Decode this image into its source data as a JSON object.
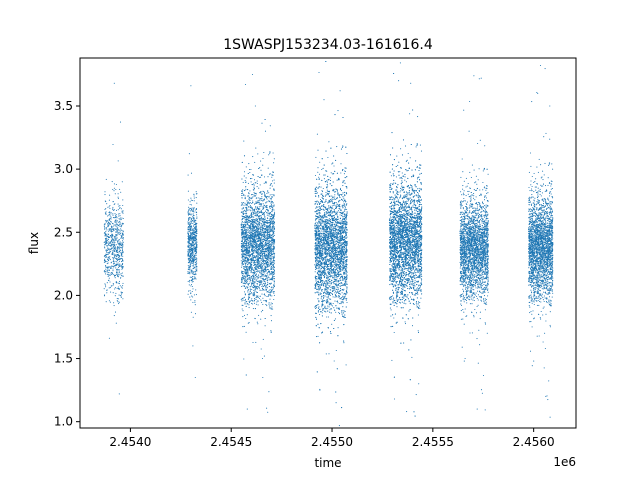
{
  "chart_data": {
    "type": "scatter",
    "title": "1SWASPJ153234.03-161616.4",
    "xlabel": "time",
    "ylabel": "flux",
    "x_offset_label": "1e6",
    "xlim": [
      2453750,
      2456210
    ],
    "ylim": [
      0.95,
      3.88
    ],
    "x_ticks": [
      2454000,
      2454500,
      2455000,
      2455500,
      2456000
    ],
    "x_tick_labels": [
      "2.4540",
      "2.4545",
      "2.4550",
      "2.4555",
      "2.4560"
    ],
    "y_ticks": [
      1.0,
      1.5,
      2.0,
      2.5,
      3.0,
      3.5
    ],
    "y_tick_labels": [
      "1.0",
      "1.5",
      "2.0",
      "2.5",
      "3.0",
      "3.5"
    ],
    "grid": false,
    "marker_color": "#1f77b4",
    "series": [
      {
        "points": [
          [
            2453870,
            2.42
          ],
          [
            2453890,
            2.15
          ],
          [
            2453900,
            2.61
          ],
          [
            2453910,
            2.33
          ],
          [
            2453920,
            3.68
          ],
          [
            2453930,
            2.48
          ],
          [
            2453945,
            1.22
          ],
          [
            2453955,
            2.55
          ],
          [
            2453960,
            2.9
          ],
          [
            2453880,
            1.95
          ],
          [
            2454290,
            2.45
          ],
          [
            2454300,
            3.66
          ],
          [
            2454305,
            2.2
          ],
          [
            2454310,
            1.6
          ],
          [
            2454315,
            2.8
          ],
          [
            2454325,
            2.38
          ],
          [
            2454330,
            2.62
          ],
          [
            2454322,
            1.35
          ],
          [
            2454560,
            2.35
          ],
          [
            2454580,
            1.1
          ],
          [
            2454600,
            2.7
          ],
          [
            2454620,
            3.5
          ],
          [
            2454640,
            2.25
          ],
          [
            2454655,
            1.5
          ],
          [
            2454670,
            3.3
          ],
          [
            2454690,
            2.5
          ],
          [
            2454700,
            1.8
          ],
          [
            2454710,
            3.05
          ],
          [
            2454920,
            2.4
          ],
          [
            2454940,
            1.25
          ],
          [
            2454960,
            3.55
          ],
          [
            2454980,
            2.1
          ],
          [
            2455000,
            2.65
          ],
          [
            2455020,
            1.15
          ],
          [
            2455040,
            3.62
          ],
          [
            2455060,
            2.3
          ],
          [
            2455070,
            1.45
          ],
          [
            2455290,
            2.5
          ],
          [
            2455310,
            1.18
          ],
          [
            2455330,
            3.7
          ],
          [
            2455350,
            2.2
          ],
          [
            2455370,
            1.08
          ],
          [
            2455390,
            3.68
          ],
          [
            2455410,
            2.75
          ],
          [
            2455430,
            1.3
          ],
          [
            2455440,
            2.4
          ],
          [
            2455640,
            2.35
          ],
          [
            2455660,
            1.5
          ],
          [
            2455680,
            3.3
          ],
          [
            2455700,
            2.6
          ],
          [
            2455720,
            1.1
          ],
          [
            2455740,
            3.72
          ],
          [
            2455760,
            2.2
          ],
          [
            2455770,
            1.7
          ],
          [
            2455980,
            2.45
          ],
          [
            2456000,
            1.48
          ],
          [
            2456020,
            3.6
          ],
          [
            2456040,
            2.3
          ],
          [
            2456060,
            1.2
          ],
          [
            2456080,
            3.5
          ],
          [
            2456090,
            2.1
          ]
        ]
      }
    ],
    "clusters": [
      {
        "x_start": 2453870,
        "x_end": 2453965,
        "mean": 2.38,
        "spread": 0.18,
        "count": 700
      },
      {
        "x_start": 2454285,
        "x_end": 2454330,
        "mean": 2.4,
        "spread": 0.17,
        "count": 650
      },
      {
        "x_start": 2454550,
        "x_end": 2454715,
        "mean": 2.4,
        "spread": 0.22,
        "count": 3200
      },
      {
        "x_start": 2454915,
        "x_end": 2455075,
        "mean": 2.38,
        "spread": 0.24,
        "count": 3800
      },
      {
        "x_start": 2455285,
        "x_end": 2455445,
        "mean": 2.43,
        "spread": 0.23,
        "count": 4200
      },
      {
        "x_start": 2455635,
        "x_end": 2455775,
        "mean": 2.37,
        "spread": 0.19,
        "count": 2600
      },
      {
        "x_start": 2455975,
        "x_end": 2456095,
        "mean": 2.38,
        "spread": 0.2,
        "count": 2600
      }
    ]
  }
}
